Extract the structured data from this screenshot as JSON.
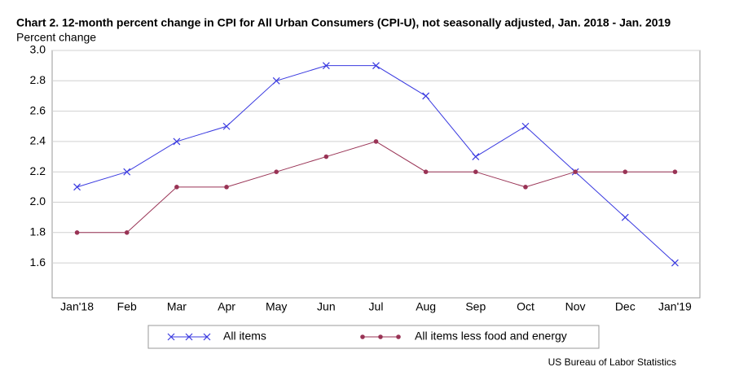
{
  "chart_data": {
    "type": "line",
    "title": "Chart 2. 12-month percent change in CPI for All Urban Consumers (CPI-U), not seasonally adjusted, Jan. 2018 - Jan. 2019",
    "y_label": "Percent change",
    "source": "US Bureau of Labor Statistics",
    "categories": [
      "Jan'18",
      "Feb",
      "Mar",
      "Apr",
      "May",
      "Jun",
      "Jul",
      "Aug",
      "Sep",
      "Oct",
      "Nov",
      "Dec",
      "Jan'19"
    ],
    "series": [
      {
        "name": "All items",
        "color": "#3a3ae0",
        "marker": "x",
        "values": [
          2.1,
          2.2,
          2.4,
          2.5,
          2.8,
          2.9,
          2.9,
          2.7,
          2.3,
          2.5,
          2.2,
          1.9,
          1.6
        ]
      },
      {
        "name": "All items less food and energy",
        "color": "#993355",
        "marker": "dot",
        "values": [
          1.8,
          1.8,
          2.1,
          2.1,
          2.2,
          2.3,
          2.4,
          2.2,
          2.2,
          2.1,
          2.2,
          2.2,
          2.2
        ]
      }
    ],
    "ylim": [
      1.37,
      3.0
    ],
    "yticks": [
      {
        "value": 3,
        "label": "3.0"
      },
      2.8,
      2.6,
      2.4,
      2.2,
      {
        "value": 2,
        "label": "2.0"
      },
      1.8,
      1.6
    ],
    "grid": true
  }
}
